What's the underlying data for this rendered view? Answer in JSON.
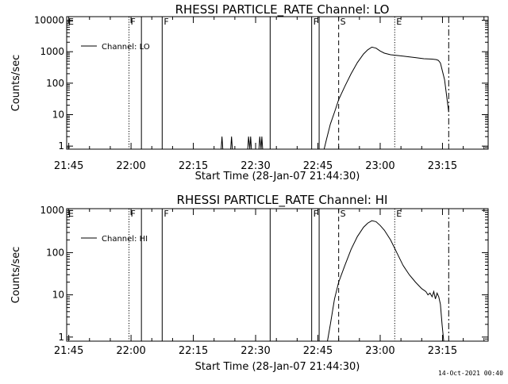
{
  "footer": {
    "timestamp": "14-Oct-2021 00:40"
  },
  "chart_data": [
    {
      "type": "line",
      "title": "RHESSI PARTICLE_RATE Channel: LO",
      "xlabel": "Start Time (28-Jan-07 21:44:30)",
      "ylabel": "Counts/sec",
      "y_scale": "log",
      "x_unit": "minutes after 21:44:30",
      "xlim": [
        0,
        101.5
      ],
      "ylim": [
        0.8,
        13000
      ],
      "x_ticks": [
        {
          "t": 0.5,
          "label": "21:45"
        },
        {
          "t": 15.5,
          "label": "22:00"
        },
        {
          "t": 30.5,
          "label": "22:15"
        },
        {
          "t": 45.5,
          "label": "22:30"
        },
        {
          "t": 60.5,
          "label": "22:45"
        },
        {
          "t": 75.5,
          "label": "23:00"
        },
        {
          "t": 90.5,
          "label": "23:15"
        }
      ],
      "y_ticks": [
        {
          "v": 1,
          "label": "1"
        },
        {
          "v": 10,
          "label": "10"
        },
        {
          "v": 100,
          "label": "100"
        },
        {
          "v": 1000,
          "label": "1000"
        },
        {
          "v": 10000,
          "label": "10000"
        }
      ],
      "legend": {
        "entry": "Channel: LO",
        "position": "top-left"
      },
      "grid": false,
      "markers": [
        {
          "t": 0,
          "style": "none",
          "label": "E"
        },
        {
          "t": 15,
          "style": "dotted",
          "label": "F"
        },
        {
          "t": 18,
          "style": "solid",
          "label": ""
        },
        {
          "t": 23,
          "style": "solid",
          "label": "F"
        },
        {
          "t": 49,
          "style": "solid",
          "label": ""
        },
        {
          "t": 59,
          "style": "solid",
          "label": "F"
        },
        {
          "t": 60.8,
          "style": "solid",
          "label": ""
        },
        {
          "t": 65.5,
          "style": "dashed",
          "label": "S"
        },
        {
          "t": 79,
          "style": "dotted",
          "label": "E"
        },
        {
          "t": 92,
          "style": "dashdot",
          "label": ""
        }
      ],
      "series": [
        {
          "points": [
            [
              37.2,
              0.8
            ],
            [
              37.4,
              2
            ],
            [
              37.6,
              0.8
            ],
            [
              39.5,
              0.8
            ],
            [
              39.7,
              2
            ],
            [
              39.9,
              0.8
            ],
            [
              43.6,
              0.8
            ],
            [
              43.8,
              2
            ],
            [
              44.1,
              0.8
            ],
            [
              44.3,
              2
            ],
            [
              44.5,
              0.8
            ],
            [
              46.3,
              0.8
            ],
            [
              46.5,
              2
            ],
            [
              46.8,
              0.8
            ],
            [
              47.0,
              2
            ],
            [
              47.2,
              0.8
            ],
            [
              62.0,
              0.8
            ],
            [
              62.5,
              1.5
            ],
            [
              63.5,
              5
            ],
            [
              64.5,
              12
            ],
            [
              65.5,
              30
            ],
            [
              67,
              80
            ],
            [
              68.5,
              200
            ],
            [
              70,
              450
            ],
            [
              71.5,
              850
            ],
            [
              72.5,
              1150
            ],
            [
              73.5,
              1400
            ],
            [
              74.5,
              1300
            ],
            [
              75.5,
              1050
            ],
            [
              76.5,
              900
            ],
            [
              78,
              800
            ],
            [
              80,
              750
            ],
            [
              82,
              700
            ],
            [
              84,
              650
            ],
            [
              86,
              600
            ],
            [
              88,
              580
            ],
            [
              89,
              560
            ],
            [
              89.5,
              530
            ],
            [
              90,
              440
            ],
            [
              91,
              130
            ],
            [
              92,
              12
            ]
          ]
        }
      ]
    },
    {
      "type": "line",
      "title": "RHESSI PARTICLE_RATE Channel: HI",
      "xlabel": "Start Time (28-Jan-07 21:44:30)",
      "ylabel": "Counts/sec",
      "y_scale": "log",
      "x_unit": "minutes after 21:44:30",
      "xlim": [
        0,
        101.5
      ],
      "ylim": [
        0.8,
        1100
      ],
      "x_ticks": [
        {
          "t": 0.5,
          "label": "21:45"
        },
        {
          "t": 15.5,
          "label": "22:00"
        },
        {
          "t": 30.5,
          "label": "22:15"
        },
        {
          "t": 45.5,
          "label": "22:30"
        },
        {
          "t": 60.5,
          "label": "22:45"
        },
        {
          "t": 75.5,
          "label": "23:00"
        },
        {
          "t": 90.5,
          "label": "23:15"
        }
      ],
      "y_ticks": [
        {
          "v": 1,
          "label": "1"
        },
        {
          "v": 10,
          "label": "10"
        },
        {
          "v": 100,
          "label": "100"
        },
        {
          "v": 1000,
          "label": "1000"
        }
      ],
      "legend": {
        "entry": "Channel: HI",
        "position": "top-left"
      },
      "grid": false,
      "markers": [
        {
          "t": 0,
          "style": "none",
          "label": "E"
        },
        {
          "t": 15,
          "style": "dotted",
          "label": "F"
        },
        {
          "t": 18,
          "style": "solid",
          "label": ""
        },
        {
          "t": 23,
          "style": "solid",
          "label": "F"
        },
        {
          "t": 49,
          "style": "solid",
          "label": ""
        },
        {
          "t": 59,
          "style": "solid",
          "label": "F"
        },
        {
          "t": 60.8,
          "style": "solid",
          "label": ""
        },
        {
          "t": 65.5,
          "style": "dashed",
          "label": "S"
        },
        {
          "t": 79,
          "style": "dotted",
          "label": "E"
        },
        {
          "t": 92,
          "style": "dashdot",
          "label": ""
        }
      ],
      "series": [
        {
          "points": [
            [
              62.8,
              0.8
            ],
            [
              63.5,
              2
            ],
            [
              64.5,
              8
            ],
            [
              65.5,
              20
            ],
            [
              67,
              50
            ],
            [
              68.5,
              120
            ],
            [
              70,
              240
            ],
            [
              71.5,
              400
            ],
            [
              72.5,
              500
            ],
            [
              73.5,
              570
            ],
            [
              74.5,
              540
            ],
            [
              75.5,
              440
            ],
            [
              76.5,
              340
            ],
            [
              78,
              200
            ],
            [
              79.5,
              100
            ],
            [
              81,
              50
            ],
            [
              82.5,
              30
            ],
            [
              84,
              20
            ],
            [
              85.5,
              14
            ],
            [
              86.5,
              12
            ],
            [
              87,
              10
            ],
            [
              87.5,
              11
            ],
            [
              88,
              9
            ],
            [
              88.4,
              12
            ],
            [
              88.8,
              8
            ],
            [
              89.2,
              11
            ],
            [
              89.6,
              9
            ],
            [
              90,
              6
            ],
            [
              90.4,
              2
            ],
            [
              90.8,
              0.8
            ]
          ]
        }
      ]
    }
  ]
}
